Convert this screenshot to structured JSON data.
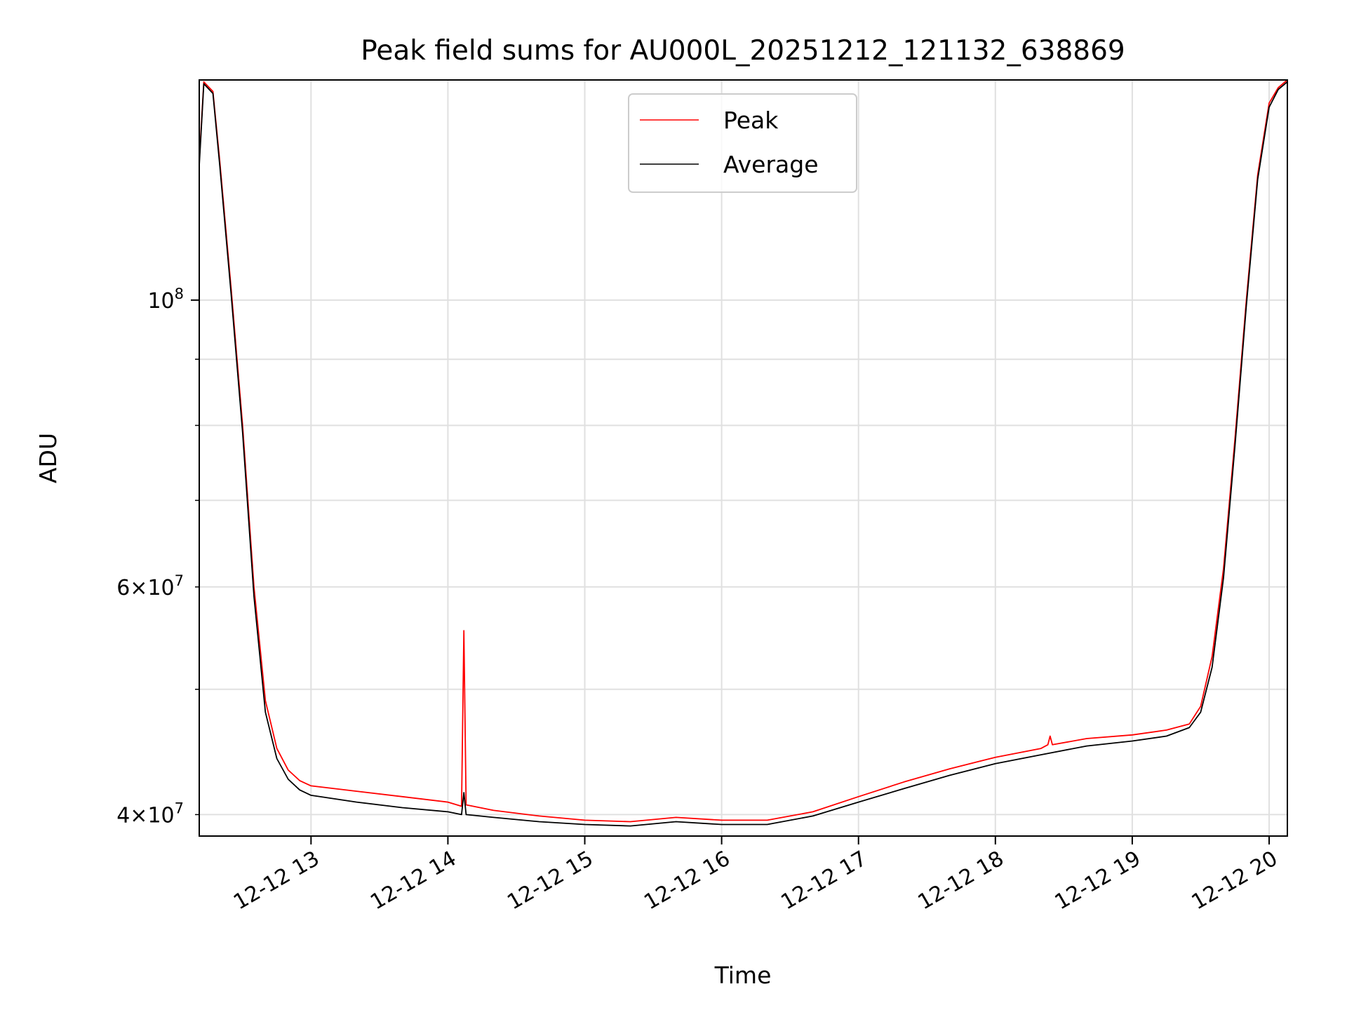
{
  "chart_data": {
    "type": "line",
    "title": "Peak field sums for AU000L_20251212_121132_638869",
    "xlabel": "Time",
    "ylabel": "ADU",
    "yscale": "log",
    "grid": true,
    "legend_placement": "upper center",
    "ylim": [
      38500000,
      148000000
    ],
    "xlim": [
      "2025-12-12 12:11",
      "2025-12-12 20:08"
    ],
    "x_ticks": [
      "12-12 13",
      "12-12 14",
      "12-12 15",
      "12-12 16",
      "12-12 17",
      "12-12 18",
      "12-12 19",
      "12-12 20"
    ],
    "y_ticks": [
      {
        "value": 40000000,
        "base": "4",
        "exp": "7",
        "major": false
      },
      {
        "value": 60000000,
        "base": "6",
        "exp": "7",
        "major": false
      },
      {
        "value": 100000000,
        "base": "10",
        "exp": "8",
        "major": true
      }
    ],
    "y_minor_gridlines": [
      50000000,
      70000000,
      80000000,
      90000000
    ],
    "series": [
      {
        "name": "Peak",
        "color": "#ff0000",
        "x": [
          "2025-12-12 12:11",
          "2025-12-12 12:13",
          "2025-12-12 12:17",
          "2025-12-12 12:20",
          "2025-12-12 12:25",
          "2025-12-12 12:30",
          "2025-12-12 12:35",
          "2025-12-12 12:40",
          "2025-12-12 12:45",
          "2025-12-12 12:50",
          "2025-12-12 12:55",
          "2025-12-12 13:00",
          "2025-12-12 13:20",
          "2025-12-12 13:40",
          "2025-12-12 14:00",
          "2025-12-12 14:06",
          "2025-12-12 14:07",
          "2025-12-12 14:08",
          "2025-12-12 14:20",
          "2025-12-12 14:40",
          "2025-12-12 15:00",
          "2025-12-12 15:20",
          "2025-12-12 15:40",
          "2025-12-12 16:00",
          "2025-12-12 16:20",
          "2025-12-12 16:40",
          "2025-12-12 17:00",
          "2025-12-12 17:20",
          "2025-12-12 17:40",
          "2025-12-12 18:00",
          "2025-12-12 18:20",
          "2025-12-12 18:23",
          "2025-12-12 18:24",
          "2025-12-12 18:25",
          "2025-12-12 18:40",
          "2025-12-12 19:00",
          "2025-12-12 19:15",
          "2025-12-12 19:25",
          "2025-12-12 19:30",
          "2025-12-12 19:35",
          "2025-12-12 19:40",
          "2025-12-12 19:45",
          "2025-12-12 19:50",
          "2025-12-12 19:55",
          "2025-12-12 20:00",
          "2025-12-12 20:04",
          "2025-12-12 20:08"
        ],
        "y": [
          128000000,
          147500000,
          145000000,
          128000000,
          102000000,
          80000000,
          60000000,
          49000000,
          45000000,
          43300000,
          42500000,
          42100000,
          41700000,
          41300000,
          40900000,
          40600000,
          55500000,
          40700000,
          40300000,
          39900000,
          39600000,
          39500000,
          39800000,
          39600000,
          39600000,
          40200000,
          41300000,
          42400000,
          43400000,
          44300000,
          45000000,
          45300000,
          46000000,
          45300000,
          45800000,
          46100000,
          46500000,
          47000000,
          48500000,
          53000000,
          62000000,
          78000000,
          100000000,
          125000000,
          142000000,
          146000000,
          148000000
        ]
      },
      {
        "name": "Average",
        "color": "#000000",
        "x": [
          "2025-12-12 12:11",
          "2025-12-12 12:13",
          "2025-12-12 12:17",
          "2025-12-12 12:20",
          "2025-12-12 12:25",
          "2025-12-12 12:30",
          "2025-12-12 12:35",
          "2025-12-12 12:40",
          "2025-12-12 12:45",
          "2025-12-12 12:50",
          "2025-12-12 12:55",
          "2025-12-12 13:00",
          "2025-12-12 13:20",
          "2025-12-12 13:40",
          "2025-12-12 14:00",
          "2025-12-12 14:06",
          "2025-12-12 14:07",
          "2025-12-12 14:08",
          "2025-12-12 14:20",
          "2025-12-12 14:40",
          "2025-12-12 15:00",
          "2025-12-12 15:20",
          "2025-12-12 15:40",
          "2025-12-12 16:00",
          "2025-12-12 16:20",
          "2025-12-12 16:40",
          "2025-12-12 17:00",
          "2025-12-12 17:20",
          "2025-12-12 17:40",
          "2025-12-12 18:00",
          "2025-12-12 18:20",
          "2025-12-12 18:40",
          "2025-12-12 19:00",
          "2025-12-12 19:15",
          "2025-12-12 19:25",
          "2025-12-12 19:30",
          "2025-12-12 19:35",
          "2025-12-12 19:40",
          "2025-12-12 19:45",
          "2025-12-12 19:50",
          "2025-12-12 19:55",
          "2025-12-12 20:00",
          "2025-12-12 20:04",
          "2025-12-12 20:08"
        ],
        "y": [
          127000000,
          147000000,
          144500000,
          127000000,
          101000000,
          79000000,
          59000000,
          48000000,
          44200000,
          42600000,
          41800000,
          41400000,
          40900000,
          40500000,
          40200000,
          40000000,
          41600000,
          40000000,
          39800000,
          39500000,
          39300000,
          39200000,
          39500000,
          39300000,
          39300000,
          39900000,
          40900000,
          41900000,
          42900000,
          43800000,
          44500000,
          45200000,
          45600000,
          46000000,
          46700000,
          48000000,
          52000000,
          61000000,
          77000000,
          99000000,
          124000000,
          141000000,
          145500000,
          147500000
        ]
      }
    ]
  }
}
